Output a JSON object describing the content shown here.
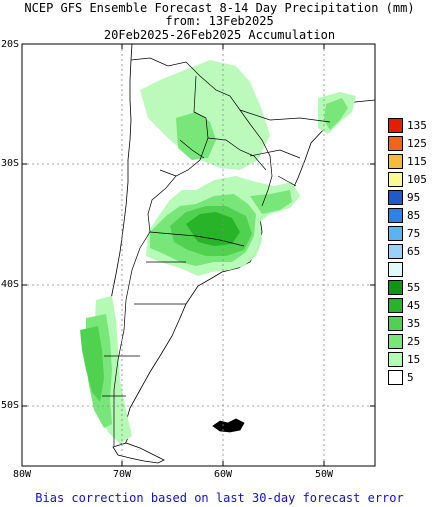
{
  "title": {
    "line1": "NCEP GFS Ensemble Forecast 8-14 Day Precipitation (mm)",
    "line2": "from: 13Feb2025",
    "line3": "20Feb2025-26Feb2025 Accumulation"
  },
  "axes": {
    "lat_labels": [
      "20S",
      "30S",
      "40S",
      "50S"
    ],
    "lon_labels": [
      "80W",
      "70W",
      "60W",
      "50W"
    ]
  },
  "legend": [
    {
      "label": "135",
      "color": "#e61e00"
    },
    {
      "label": "125",
      "color": "#f0641e"
    },
    {
      "label": "115",
      "color": "#f7ba3c"
    },
    {
      "label": "105",
      "color": "#fbfa90"
    },
    {
      "label": "95",
      "color": "#1e5ac8"
    },
    {
      "label": "85",
      "color": "#2e82e6"
    },
    {
      "label": "75",
      "color": "#5ab4f0"
    },
    {
      "label": "65",
      "color": "#9ad2f5"
    },
    {
      "label": "",
      "color": "#e1fafa"
    },
    {
      "label": "55",
      "color": "#0f9614"
    },
    {
      "label": "45",
      "color": "#28b428"
    },
    {
      "label": "35",
      "color": "#50d250"
    },
    {
      "label": "25",
      "color": "#78e678"
    },
    {
      "label": "15",
      "color": "#b4fab4"
    },
    {
      "label": "5",
      "color": "#ffffff"
    }
  ],
  "footer": "Bias correction based on last 30-day forecast error"
}
